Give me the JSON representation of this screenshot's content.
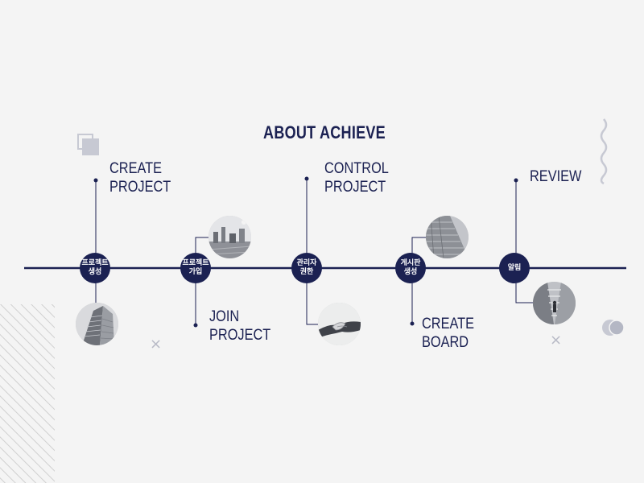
{
  "title": "ABOUT ACHIEVE",
  "steps": [
    {
      "node_label": "프로젝트\n생성",
      "caption_line1": "CREATE",
      "caption_line2": "PROJECT"
    },
    {
      "node_label": "프로젝트\n가입",
      "caption_line1": "JOIN",
      "caption_line2": "PROJECT"
    },
    {
      "node_label": "관리자\n권한",
      "caption_line1": "CONTROL",
      "caption_line2": "PROJECT"
    },
    {
      "node_label": "게시판\n생성",
      "caption_line1": "CREATE",
      "caption_line2": "BOARD"
    },
    {
      "node_label": "알림",
      "caption_line1": "REVIEW",
      "caption_line2": ""
    }
  ],
  "photos": [
    "building-photo",
    "city-street-photo",
    "handshake-photo",
    "stairs-photo",
    "walking-person-photo"
  ],
  "decorations": {
    "close_glyph": "×"
  },
  "colors": {
    "primary": "#1b2152",
    "background": "#f4f4f4",
    "deco_gray": "#c7c9d3"
  }
}
